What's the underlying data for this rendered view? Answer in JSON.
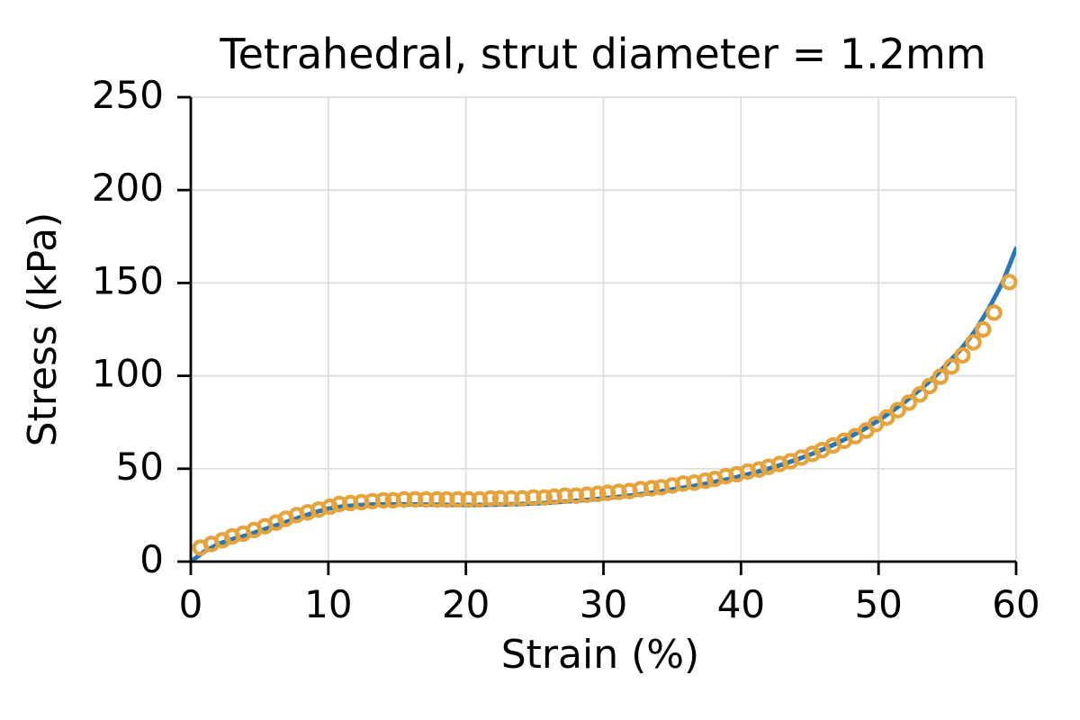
{
  "figure": {
    "background": "#ffffff"
  },
  "chart_data": {
    "type": "line",
    "title": "Tetrahedral, strut diameter = 1.2mm",
    "xlabel": "Strain (%)",
    "ylabel": "Stress (kPa)",
    "xlim": [
      0,
      60
    ],
    "ylim": [
      0,
      250
    ],
    "xticks": [
      0,
      10,
      20,
      30,
      40,
      50,
      60
    ],
    "yticks": [
      0,
      50,
      100,
      150,
      200,
      250
    ],
    "grid": true,
    "legend": "none",
    "axis_color": "#000000",
    "grid_color": "#dedede",
    "series": [
      {
        "name": "line-series",
        "type": "line",
        "color": "#2878b5",
        "line_width": 5,
        "points": [
          [
            0,
            0
          ],
          [
            1,
            5.5
          ],
          [
            2,
            9.5
          ],
          [
            3,
            12
          ],
          [
            4,
            14
          ],
          [
            5,
            16.5
          ],
          [
            6,
            19
          ],
          [
            7,
            21.5
          ],
          [
            8,
            24
          ],
          [
            9,
            26.5
          ],
          [
            10,
            28.5
          ],
          [
            11,
            29.7
          ],
          [
            12,
            30.3
          ],
          [
            13,
            30.7
          ],
          [
            14,
            30.8
          ],
          [
            15,
            30.8
          ],
          [
            16,
            30.8
          ],
          [
            17,
            30.7
          ],
          [
            18,
            30.6
          ],
          [
            19,
            30.5
          ],
          [
            20,
            30.5
          ],
          [
            21,
            30.5
          ],
          [
            22,
            30.6
          ],
          [
            23,
            30.8
          ],
          [
            24,
            31
          ],
          [
            25,
            31.3
          ],
          [
            26,
            31.7
          ],
          [
            27,
            32.2
          ],
          [
            28,
            32.7
          ],
          [
            29,
            33.3
          ],
          [
            30,
            34
          ],
          [
            31,
            34.8
          ],
          [
            32,
            35.6
          ],
          [
            33,
            36.6
          ],
          [
            34,
            37.6
          ],
          [
            35,
            38.8
          ],
          [
            36,
            40
          ],
          [
            37,
            41.3
          ],
          [
            38,
            42.8
          ],
          [
            39,
            44.3
          ],
          [
            40,
            46
          ],
          [
            41,
            47.9
          ],
          [
            42,
            50
          ],
          [
            43,
            52.3
          ],
          [
            44,
            54.8
          ],
          [
            45,
            57.5
          ],
          [
            46,
            60.5
          ],
          [
            47,
            63.8
          ],
          [
            48,
            67.5
          ],
          [
            49,
            71.5
          ],
          [
            50,
            76
          ],
          [
            51,
            81
          ],
          [
            52,
            86.5
          ],
          [
            53,
            92.5
          ],
          [
            54,
            99
          ],
          [
            55,
            106.5
          ],
          [
            56,
            114.5
          ],
          [
            57,
            124
          ],
          [
            58,
            136
          ],
          [
            59,
            150
          ],
          [
            60,
            168.5
          ]
        ]
      },
      {
        "name": "scatter-series",
        "type": "scatter",
        "marker": "open-circle",
        "color": "#e6a33c",
        "marker_size": 18,
        "points": [
          [
            0.7,
            7.5
          ],
          [
            1.5,
            9.5
          ],
          [
            2.3,
            11.5
          ],
          [
            3.0,
            13.5
          ],
          [
            3.8,
            15
          ],
          [
            4.6,
            17
          ],
          [
            5.4,
            19
          ],
          [
            6.2,
            21
          ],
          [
            6.9,
            23
          ],
          [
            7.7,
            25
          ],
          [
            8.5,
            26.5
          ],
          [
            9.3,
            28
          ],
          [
            10.1,
            29.5
          ],
          [
            10.8,
            31
          ],
          [
            11.6,
            31.5
          ],
          [
            12.4,
            32
          ],
          [
            13.2,
            32.5
          ],
          [
            14.0,
            33
          ],
          [
            14.7,
            33
          ],
          [
            15.5,
            33.5
          ],
          [
            16.3,
            33.5
          ],
          [
            17.1,
            33.5
          ],
          [
            17.9,
            33.5
          ],
          [
            18.6,
            33.5
          ],
          [
            19.4,
            33.5
          ],
          [
            20.2,
            33.5
          ],
          [
            21.0,
            33.5
          ],
          [
            21.8,
            34
          ],
          [
            22.5,
            34
          ],
          [
            23.3,
            34
          ],
          [
            24.1,
            34
          ],
          [
            24.9,
            34.5
          ],
          [
            25.7,
            34.5
          ],
          [
            26.4,
            35
          ],
          [
            27.2,
            35.5
          ],
          [
            28.0,
            35.5
          ],
          [
            28.8,
            36
          ],
          [
            29.6,
            36.5
          ],
          [
            30.3,
            37
          ],
          [
            31.1,
            37.5
          ],
          [
            31.9,
            38
          ],
          [
            32.7,
            39
          ],
          [
            33.5,
            39.5
          ],
          [
            34.2,
            40
          ],
          [
            35.0,
            41
          ],
          [
            35.8,
            42
          ],
          [
            36.6,
            42.5
          ],
          [
            37.4,
            43.5
          ],
          [
            38.1,
            44.5
          ],
          [
            38.9,
            46
          ],
          [
            39.7,
            47
          ],
          [
            40.5,
            48.5
          ],
          [
            41.3,
            49.5
          ],
          [
            42.0,
            51
          ],
          [
            42.8,
            52.5
          ],
          [
            43.6,
            54
          ],
          [
            44.4,
            56
          ],
          [
            45.2,
            58
          ],
          [
            45.9,
            60
          ],
          [
            46.7,
            62.5
          ],
          [
            47.5,
            65
          ],
          [
            48.3,
            67.5
          ],
          [
            49.1,
            70.5
          ],
          [
            49.8,
            74
          ],
          [
            50.6,
            77.5
          ],
          [
            51.4,
            81.5
          ],
          [
            52.2,
            85.5
          ],
          [
            53.0,
            90
          ],
          [
            53.7,
            94.5
          ],
          [
            54.5,
            99.5
          ],
          [
            55.3,
            105
          ],
          [
            56.1,
            111
          ],
          [
            56.9,
            118
          ],
          [
            57.6,
            125
          ],
          [
            58.4,
            134
          ],
          [
            59.5,
            150.5
          ]
        ]
      }
    ]
  }
}
